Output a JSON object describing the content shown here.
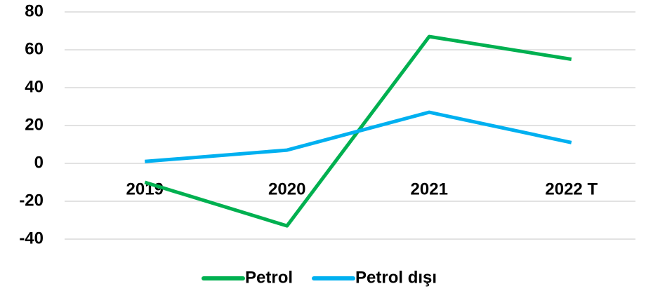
{
  "chart_data": {
    "type": "line",
    "categories": [
      "2019",
      "2020",
      "2021",
      "2022 T"
    ],
    "series": [
      {
        "name": "Petrol",
        "color": "#00b050",
        "values": [
          -10,
          -33,
          67,
          55
        ]
      },
      {
        "name": "Petrol dışı",
        "color": "#00b0f0",
        "values": [
          1,
          7,
          27,
          11
        ]
      }
    ],
    "ylim": [
      -40,
      80
    ],
    "yticks": [
      -40,
      -20,
      0,
      20,
      40,
      60,
      80
    ],
    "grid": true,
    "legend": "bottom"
  }
}
